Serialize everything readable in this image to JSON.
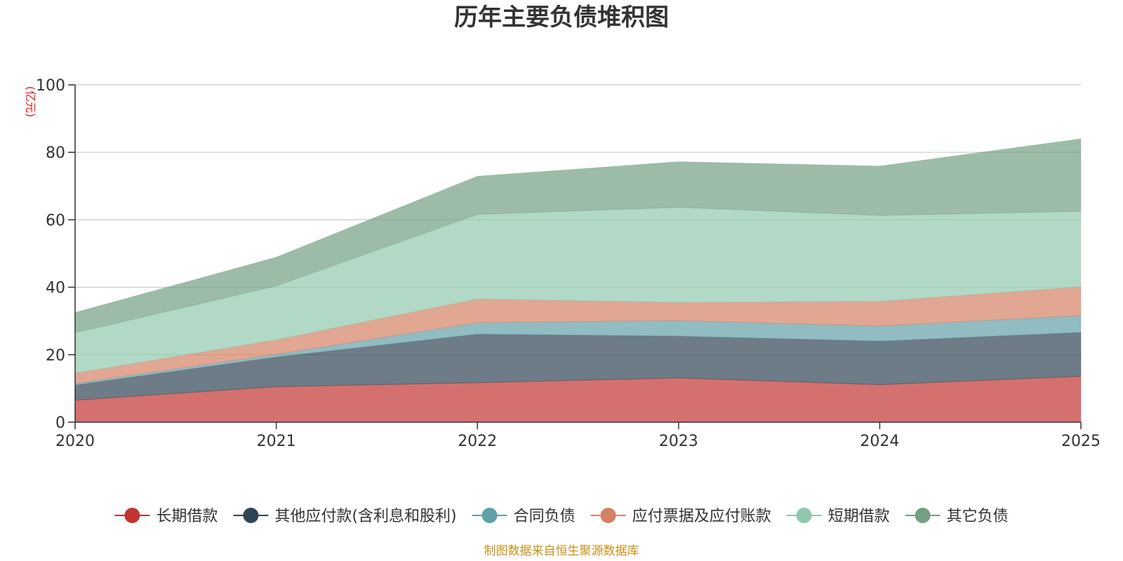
{
  "chart_data": {
    "type": "area",
    "stacked": true,
    "title": "历年主要负债堆积图",
    "unit": "(亿元)",
    "categories": [
      "2020",
      "2021",
      "2022",
      "2023",
      "2024",
      "2025"
    ],
    "ylim": [
      0,
      100
    ],
    "yticks": [
      "0",
      "20",
      "40",
      "60",
      "80",
      "100"
    ],
    "grid": true,
    "legend_position": "bottom",
    "series": [
      {
        "name": "长期借款",
        "color": "#c23531",
        "values": [
          6.5,
          10.5,
          11.7,
          13.1,
          11.1,
          13.6
        ]
      },
      {
        "name": "其他应付款(含利息和股利)",
        "color": "#2f4554",
        "values": [
          4.5,
          8.8,
          14.4,
          12.4,
          12.9,
          13.0
        ]
      },
      {
        "name": "合同负债",
        "color": "#61a0a8",
        "values": [
          0.5,
          0.8,
          3.4,
          4.6,
          4.5,
          5.0
        ]
      },
      {
        "name": "应付票据及应付账款",
        "color": "#d48265",
        "values": [
          3.0,
          4.3,
          7.0,
          5.4,
          7.3,
          8.5
        ]
      },
      {
        "name": "短期借款",
        "color": "#91c7ae",
        "values": [
          12.0,
          16.0,
          25.1,
          28.2,
          25.5,
          22.4
        ]
      },
      {
        "name": "其它负债",
        "color": "#749f83",
        "values": [
          6.0,
          8.5,
          11.3,
          13.5,
          14.6,
          21.5
        ]
      }
    ]
  },
  "footer": {
    "text": "制图数据来自恒生聚源数据库",
    "color": "#c89018"
  },
  "unit_color": "#e02020"
}
